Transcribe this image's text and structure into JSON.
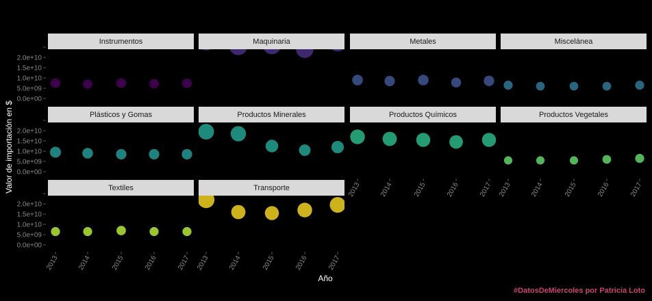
{
  "chart_data": {
    "type": "scatter",
    "xlabel": "Año",
    "ylabel": "Valor de importación en $",
    "x": [
      "2013",
      "2014",
      "2015",
      "2016",
      "2017"
    ],
    "y_ticks": [
      "0.0e+00",
      "5.0e+09",
      "1.0e+10",
      "1.5e+10",
      "2.0e+10"
    ],
    "ylim": [
      0,
      21000000000.0
    ],
    "caption": "#DatosDeMiercoles por Patricia Loto",
    "point_size_encodes": "value",
    "facets": [
      {
        "name": "Instrumentos",
        "color": "#440154",
        "values": [
          7500000000.0,
          7000000000.0,
          7500000000.0,
          7200000000.0,
          7400000000.0
        ]
      },
      {
        "name": "Maquinaria",
        "color": "#472c7a",
        "values": [
          28000000000.0,
          25500000000.0,
          26000000000.0,
          24000000000.0,
          27500000000.0
        ]
      },
      {
        "name": "Metales",
        "color": "#3b518b",
        "values": [
          9000000000.0,
          8500000000.0,
          9000000000.0,
          7800000000.0,
          8600000000.0
        ]
      },
      {
        "name": "Miscelánea",
        "color": "#2c718e",
        "values": [
          6500000000.0,
          6000000000.0,
          6000000000.0,
          6000000000.0,
          6500000000.0
        ]
      },
      {
        "name": "Plásticos y Gomas",
        "color": "#21908d",
        "values": [
          9500000000.0,
          9000000000.0,
          8500000000.0,
          8500000000.0,
          8500000000.0
        ]
      },
      {
        "name": "Productos Minerales",
        "color": "#1f9a8a",
        "values": [
          19500000000.0,
          18500000000.0,
          12500000000.0,
          10500000000.0,
          12000000000.0
        ]
      },
      {
        "name": "Productos Químicos",
        "color": "#27ad81",
        "values": [
          17000000000.0,
          16000000000.0,
          15500000000.0,
          14500000000.0,
          15500000000.0
        ]
      },
      {
        "name": "Productos Vegetales",
        "color": "#5cc863",
        "values": [
          5500000000.0,
          5500000000.0,
          5500000000.0,
          6000000000.0,
          6500000000.0
        ]
      },
      {
        "name": "Textiles",
        "color": "#aadc32",
        "values": [
          6500000000.0,
          6500000000.0,
          7000000000.0,
          6500000000.0,
          6500000000.0
        ]
      },
      {
        "name": "Transporte",
        "color": "#e3c51f",
        "values": [
          22000000000.0,
          16000000000.0,
          15500000000.0,
          17000000000.0,
          19500000000.0
        ]
      }
    ]
  }
}
